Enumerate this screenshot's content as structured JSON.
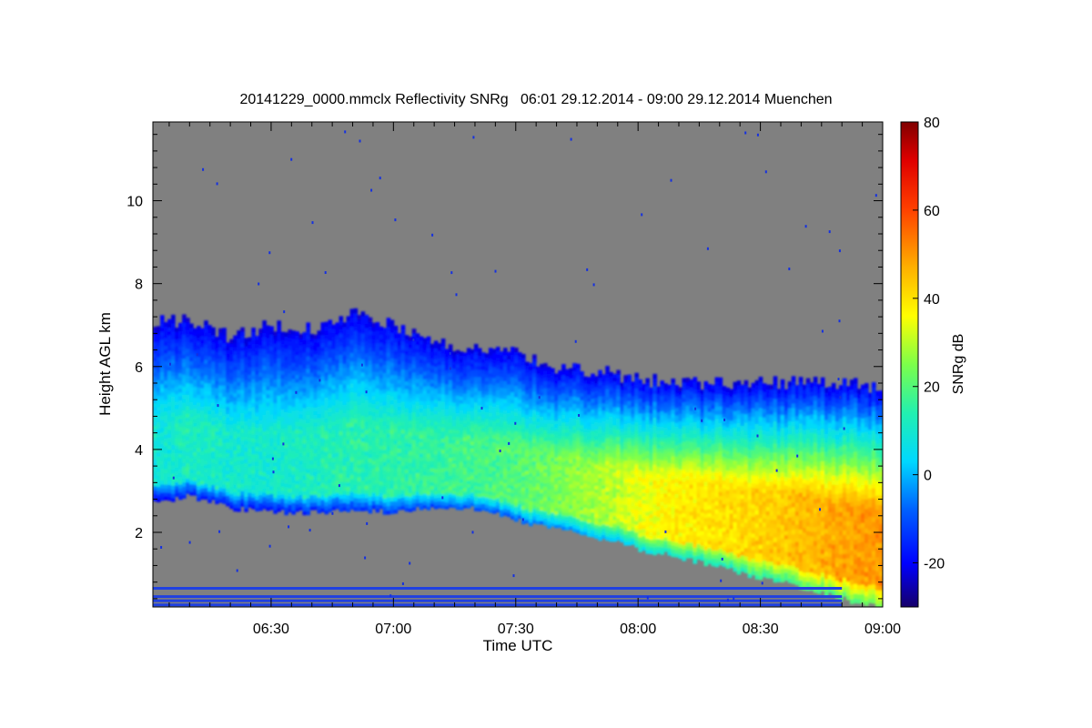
{
  "chart_data": {
    "type": "heatmap",
    "title": "20141229_0000.mmclx Reflectivity SNRg   06:01 29.12.2014 - 09:00 29.12.2014 Muenchen",
    "xlabel": "Time UTC",
    "ylabel": "Height AGL km",
    "xlim": [
      "06:01",
      "09:00"
    ],
    "ylim": [
      0.2,
      11.9
    ],
    "x_ticks": [
      "06:30",
      "07:00",
      "07:30",
      "08:00",
      "08:30",
      "09:00"
    ],
    "y_ticks": [
      2,
      4,
      6,
      8,
      10
    ],
    "colorbar": {
      "label": "SNRg dB",
      "range": [
        -30,
        80
      ],
      "ticks": [
        -20,
        0,
        20,
        40,
        60,
        80
      ]
    },
    "background_color": "#808080",
    "cloud_layer": {
      "x": [
        "06:01",
        "06:10",
        "06:20",
        "06:30",
        "06:40",
        "06:50",
        "07:00",
        "07:10",
        "07:20",
        "07:30",
        "07:40",
        "07:50",
        "08:00",
        "08:10",
        "08:20",
        "08:30",
        "08:40",
        "08:50",
        "09:00"
      ],
      "top_km": [
        7.1,
        7.1,
        6.7,
        7.0,
        6.9,
        7.3,
        7.0,
        6.6,
        6.4,
        6.3,
        6.0,
        5.9,
        5.7,
        5.6,
        5.6,
        5.6,
        5.6,
        5.6,
        5.5
      ],
      "base_km": [
        2.7,
        2.9,
        2.6,
        2.5,
        2.5,
        2.5,
        2.5,
        2.6,
        2.6,
        2.3,
        2.1,
        1.9,
        1.6,
        1.4,
        1.2,
        0.9,
        0.7,
        0.4,
        0.2
      ],
      "core_snr_db": [
        8,
        12,
        10,
        10,
        12,
        14,
        15,
        16,
        18,
        20,
        24,
        28,
        34,
        38,
        40,
        42,
        45,
        48,
        50
      ]
    },
    "ground_clutter_km": [
      0.25,
      0.35,
      0.45,
      0.65
    ]
  }
}
